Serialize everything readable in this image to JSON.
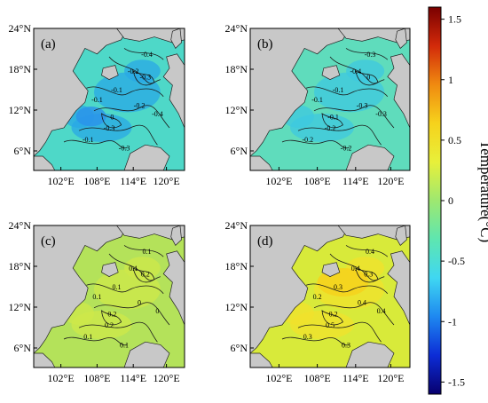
{
  "figure": {
    "colorbar": {
      "label": "Temperature(°C)",
      "ticks": [
        "1.5",
        "1",
        "0.5",
        "0",
        "-0.5",
        "-1",
        "-1.5"
      ],
      "tick_values": [
        1.5,
        1,
        0.5,
        0,
        -0.5,
        -1,
        -1.5
      ],
      "range": [
        -1.6,
        1.6
      ],
      "colormap": [
        "#08006e",
        "#0c2cd6",
        "#1e88f0",
        "#3fd7f2",
        "#5ee6b0",
        "#9ee870",
        "#e8f03a",
        "#f6d21c",
        "#f08a10",
        "#d22a0a",
        "#7a0000"
      ]
    },
    "x_ticks": [
      "102°E",
      "108°E",
      "114°E",
      "120°E"
    ],
    "y_ticks": [
      "24°N",
      "18°N",
      "12°N",
      "6°N"
    ],
    "land_color": "#c8c8c8",
    "panels": [
      {
        "label": "(a)",
        "base": "#4ed8c8",
        "accent": "#2aa8e6",
        "contours": [
          "-0.1",
          "-0.2",
          "-0.3",
          "-0.4",
          "-0.2",
          "-0.1",
          "0",
          "-0.3",
          "-0.4",
          "-0.3",
          "-0.1"
        ]
      },
      {
        "label": "(b)",
        "base": "#5fdcbc",
        "accent": "#3ec8e0",
        "contours": [
          "-0.1",
          "-0.3",
          "-0.2",
          "-0.3",
          "-0.4",
          "-0.2",
          "-0.1",
          "0",
          "-0.3",
          "-0.2",
          "-0.1"
        ]
      },
      {
        "label": "(c)",
        "base": "#b4e25a",
        "accent": "#cfe84a",
        "contours": [
          "0.1",
          "0",
          "0.2",
          "0.1",
          "0.1",
          "0.1",
          "0.2",
          "0.2",
          "0",
          "0.1",
          "0.1"
        ]
      },
      {
        "label": "(d)",
        "base": "#d8ea3a",
        "accent": "#f2e22c",
        "contours": [
          "0.3",
          "0.4",
          "0.5",
          "0.4",
          "0.4",
          "0.3",
          "0.2",
          "0.3",
          "0.4",
          "0.3",
          "0.2"
        ]
      }
    ]
  }
}
